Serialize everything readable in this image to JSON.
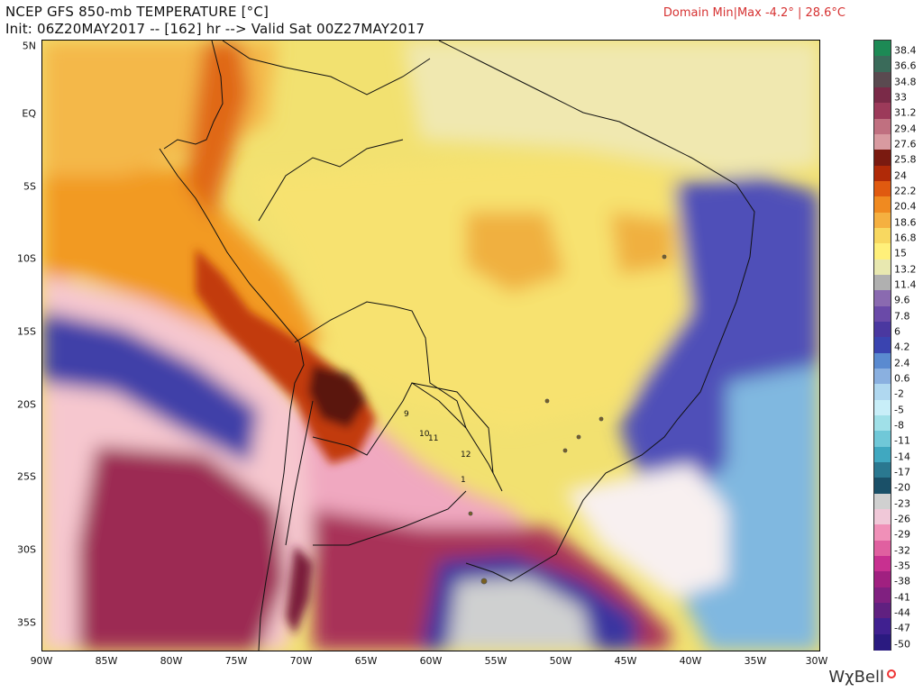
{
  "header": {
    "title": "NCEP GFS 850-mb TEMPERATURE [°C]",
    "init_line": "Init: 06Z20MAY2017 -- [162] hr --> Valid Sat 00Z27MAY2017",
    "domain_minmax": "Domain Min|Max -4.2° | 28.6°C"
  },
  "axes": {
    "lat_labels": [
      "5N",
      "EQ",
      "5S",
      "10S",
      "15S",
      "20S",
      "25S",
      "30S",
      "35S"
    ],
    "lon_labels": [
      "90W",
      "85W",
      "80W",
      "75W",
      "70W",
      "65W",
      "60W",
      "55W",
      "50W",
      "45W",
      "40W",
      "35W",
      "30W"
    ]
  },
  "map": {
    "region_labels": [
      "9",
      "10",
      "11",
      "12",
      "1"
    ]
  },
  "colorbar": {
    "labels": [
      "38.4",
      "36.6",
      "34.8",
      "33",
      "31.2",
      "29.4",
      "27.6",
      "25.8",
      "24",
      "22.2",
      "20.4",
      "18.6",
      "16.8",
      "15",
      "13.2",
      "11.4",
      "9.6",
      "7.8",
      "6",
      "4.2",
      "2.4",
      "0.6",
      "-2",
      "-5",
      "-8",
      "-11",
      "-14",
      "-17",
      "-20",
      "-23",
      "-26",
      "-29",
      "-32",
      "-35",
      "-38",
      "-41",
      "-44",
      "-47",
      "-50"
    ],
    "colors": [
      "#1d8a55",
      "#3a6b5a",
      "#5a4a50",
      "#7a2a48",
      "#9c3a5a",
      "#c07080",
      "#d89aa0",
      "#7a1a10",
      "#b02a08",
      "#e05a10",
      "#f08a20",
      "#f5b040",
      "#f8d860",
      "#fff07a",
      "#e8e8b0",
      "#b0b0b0",
      "#8a6ab0",
      "#6a4aa8",
      "#4a38a0",
      "#3a44b0",
      "#5a8ad0",
      "#8ab0e0",
      "#b0d8f0",
      "#c8eef8",
      "#a0e0e8",
      "#70c8d8",
      "#40a8c0",
      "#2a7890",
      "#1a5068",
      "#d0d0d0",
      "#f0c8d8",
      "#f090b8",
      "#e060a0",
      "#c83090",
      "#a02080",
      "#802080",
      "#602080",
      "#402090",
      "#2a1a80"
    ]
  },
  "brand": {
    "name": "WχBell"
  }
}
